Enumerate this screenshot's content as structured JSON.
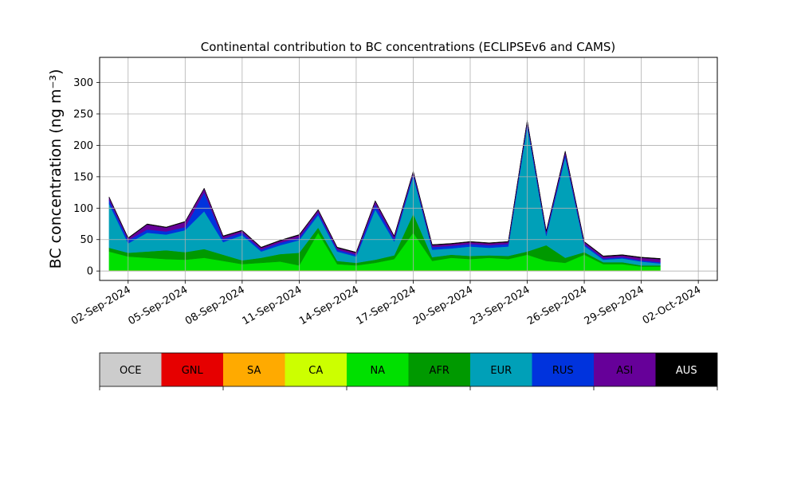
{
  "chart_data": {
    "type": "area",
    "stacked": true,
    "title": "Continental contribution to BC concentrations (ECLIPSEv6 and CAMS)",
    "ylabel": "BC concentration (ng m⁻³)",
    "xlabel": "",
    "x_start": "2024-09-01",
    "x_end": "2024-09-30",
    "ylim": [
      -15,
      340
    ],
    "xlim": [
      "2024-08-31T12:00",
      "2024-10-03T00:00"
    ],
    "yticks": [
      0,
      50,
      100,
      150,
      200,
      250,
      300
    ],
    "xticks": [
      "02-Sep-2024",
      "05-Sep-2024",
      "08-Sep-2024",
      "11-Sep-2024",
      "14-Sep-2024",
      "17-Sep-2024",
      "20-Sep-2024",
      "23-Sep-2024",
      "26-Sep-2024",
      "29-Sep-2024",
      "02-Oct-2024"
    ],
    "grid": true,
    "legend_position": "below",
    "series": [
      {
        "name": "OCE",
        "color": "#cccccc",
        "values": [
          1,
          1,
          1,
          1,
          1,
          1,
          1,
          1,
          1,
          1,
          1,
          1,
          1,
          1,
          1,
          1,
          1,
          1,
          1,
          1,
          1,
          1,
          1,
          1,
          1,
          1,
          1,
          1,
          1,
          1
        ]
      },
      {
        "name": "GNL",
        "color": "#e60000",
        "values": [
          0,
          0,
          0,
          0,
          0,
          0,
          0,
          0,
          0,
          0,
          0,
          0,
          0,
          0,
          0,
          0,
          0,
          0,
          0,
          0,
          0,
          0,
          0,
          0,
          0,
          0,
          0,
          0,
          0,
          0
        ]
      },
      {
        "name": "SA",
        "color": "#ffaa00",
        "values": [
          0,
          0,
          0,
          0,
          0,
          0,
          0,
          0,
          0,
          0,
          0,
          0,
          0,
          0,
          0,
          0,
          0,
          0,
          0,
          0,
          0,
          0,
          0,
          0,
          0,
          0,
          0,
          0,
          0,
          0
        ]
      },
      {
        "name": "CA",
        "color": "#ccff00",
        "values": [
          0,
          0,
          0,
          0,
          0,
          0,
          0,
          0,
          0,
          0,
          0,
          0,
          0,
          0,
          0,
          0,
          0,
          0,
          0,
          0,
          0,
          0,
          0,
          0,
          0,
          0,
          0,
          0,
          0,
          0
        ]
      },
      {
        "name": "NA",
        "color": "#00e000",
        "values": [
          30,
          22,
          20,
          18,
          17,
          20,
          15,
          10,
          12,
          14,
          8,
          60,
          10,
          8,
          12,
          18,
          60,
          15,
          20,
          18,
          20,
          18,
          25,
          15,
          12,
          25,
          10,
          10,
          6,
          6
        ]
      },
      {
        "name": "AFR",
        "color": "#009900",
        "values": [
          6,
          6,
          10,
          14,
          12,
          14,
          10,
          6,
          8,
          12,
          20,
          8,
          5,
          4,
          5,
          6,
          30,
          6,
          5,
          5,
          4,
          5,
          5,
          25,
          8,
          4,
          3,
          3,
          2,
          2
        ]
      },
      {
        "name": "EUR",
        "color": "#00a0b8",
        "values": [
          70,
          15,
          30,
          25,
          35,
          60,
          20,
          40,
          10,
          14,
          20,
          20,
          15,
          10,
          80,
          22,
          60,
          12,
          10,
          15,
          12,
          15,
          200,
          15,
          160,
          10,
          4,
          6,
          6,
          3
        ]
      },
      {
        "name": "RUS",
        "color": "#0033dd",
        "values": [
          6,
          5,
          5,
          5,
          5,
          30,
          5,
          4,
          3,
          4,
          4,
          4,
          3,
          3,
          8,
          4,
          4,
          4,
          4,
          4,
          4,
          4,
          5,
          4,
          5,
          3,
          2,
          2,
          2,
          2
        ]
      },
      {
        "name": "ASI",
        "color": "#660099",
        "values": [
          4,
          3,
          8,
          6,
          8,
          6,
          4,
          3,
          3,
          3,
          4,
          4,
          3,
          3,
          5,
          4,
          3,
          3,
          3,
          3,
          3,
          3,
          3,
          3,
          4,
          3,
          3,
          3,
          4,
          5
        ]
      },
      {
        "name": "AUS",
        "color": "#000000",
        "values": [
          1,
          1,
          1,
          1,
          1,
          1,
          1,
          1,
          1,
          1,
          1,
          1,
          1,
          1,
          1,
          1,
          1,
          1,
          1,
          1,
          1,
          1,
          1,
          1,
          1,
          1,
          1,
          1,
          1,
          1
        ]
      }
    ]
  }
}
